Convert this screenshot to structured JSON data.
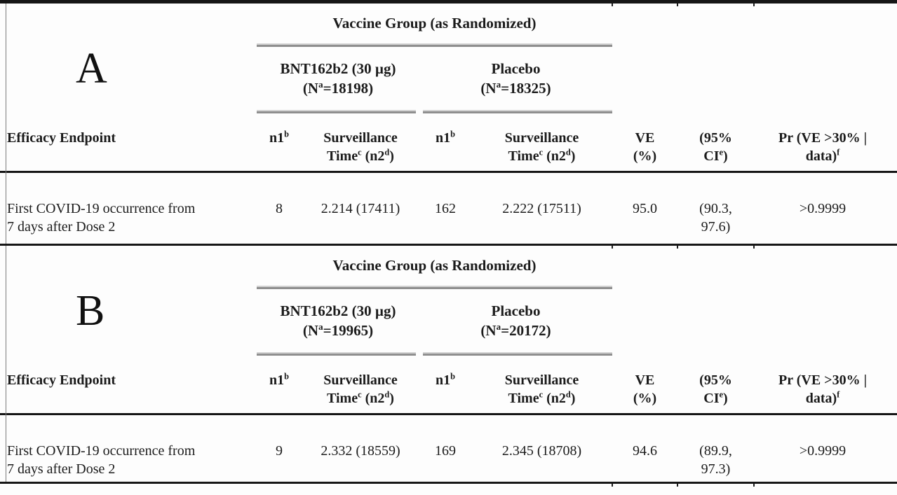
{
  "colors": {
    "rule": "#161616",
    "spanner_bar": "#8f8f8f"
  },
  "table": {
    "panels": [
      {
        "label": "A",
        "spanner": "Vaccine Group (as Randomized)",
        "groups": [
          {
            "name": "BNT162b2 (30 µg)",
            "n": "(N^{a}=18198)"
          },
          {
            "name": "Placebo",
            "n": "(N^{a}=18325)"
          }
        ],
        "columns": {
          "endpoint": "Efficacy Endpoint",
          "n1": "n1^{b}",
          "surveillance": "Surveillance\nTime^{c} (n2^{d})",
          "ve": "VE\n(%)",
          "ci": "(95%\nCI^{e})",
          "pr": "Pr (VE >30% |\ndata)^{f}"
        },
        "row": {
          "endpoint": "First COVID-19 occurrence from\n7 days after Dose 2",
          "vaccine_n1": "8",
          "vaccine_surveillance": "2.214 (17411)",
          "placebo_n1": "162",
          "placebo_surveillance": "2.222 (17511)",
          "ve": "95.0",
          "ci": "(90.3,\n97.6)",
          "pr": ">0.9999"
        }
      },
      {
        "label": "B",
        "spanner": "Vaccine Group (as Randomized)",
        "groups": [
          {
            "name": "BNT162b2 (30 µg)",
            "n": "(N^{a}=19965)"
          },
          {
            "name": "Placebo",
            "n": "(N^{a}=20172)"
          }
        ],
        "columns": {
          "endpoint": "Efficacy Endpoint",
          "n1": "n1^{b}",
          "surveillance": "Surveillance\nTime^{c} (n2^{d})",
          "ve": "VE\n(%)",
          "ci": "(95%\nCI^{e})",
          "pr": "Pr (VE >30% |\ndata)^{f}"
        },
        "row": {
          "endpoint": "First COVID-19 occurrence from\n7 days after Dose 2",
          "vaccine_n1": "9",
          "vaccine_surveillance": "2.332 (18559)",
          "placebo_n1": "169",
          "placebo_surveillance": "2.345 (18708)",
          "ve": "94.6",
          "ci": "(89.9,\n97.3)",
          "pr": ">0.9999"
        }
      }
    ]
  }
}
